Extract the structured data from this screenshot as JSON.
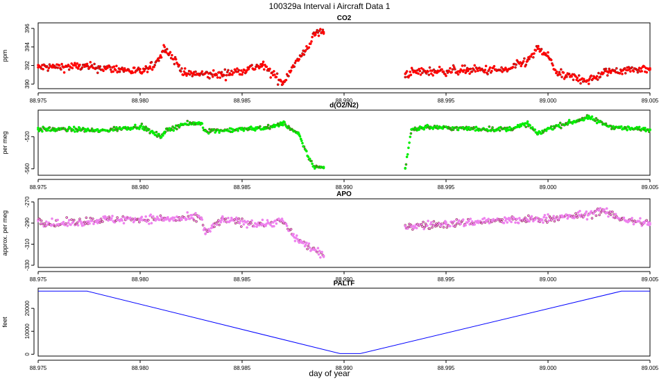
{
  "figure_title": "100329a   Interval i Aircraft Data 1",
  "xlabel": "day of year",
  "colors": {
    "co2": "#ff0000",
    "o2n2": "#00ee00",
    "apo": "#ee82ee",
    "paltf": "#0000ff",
    "outline": "#000000"
  },
  "chart_data": [
    {
      "type": "scatter",
      "title": "CO2",
      "ylabel": "ppm",
      "xlim": [
        88.975,
        89.005
      ],
      "ylim": [
        389.5,
        396.6
      ],
      "xticks": [
        "88.975",
        "88.980",
        "88.985",
        "88.990",
        "88.995",
        "89.000",
        "89.005"
      ],
      "yticks": [
        "390",
        "392",
        "394",
        "396"
      ],
      "series": [
        {
          "name": "CO2",
          "segments": [
            {
              "x": [
                88.975,
                88.977,
                88.979,
                88.98,
                88.9805,
                88.981,
                88.9812,
                88.9822,
                88.984,
                88.986,
                88.987,
                88.9875,
                88.988,
                88.9886,
                88.989
              ],
              "y": [
                391.8,
                391.9,
                391.6,
                391.3,
                391.7,
                393.0,
                394.0,
                391.1,
                391.0,
                392.0,
                390.1,
                392.0,
                393.2,
                395.5,
                395.6
              ]
            },
            {
              "x": [
                88.993,
                88.9935,
                88.996,
                88.998,
                88.999,
                88.9995,
                89.0,
                89.0005,
                89.002,
                89.003,
                89.005
              ],
              "y": [
                391.1,
                391.3,
                391.5,
                391.5,
                392.5,
                393.8,
                393.0,
                391.0,
                390.4,
                391.4,
                391.7
              ]
            }
          ]
        }
      ]
    },
    {
      "type": "scatter",
      "title": "d(O2/N2)",
      "ylabel": "per meg",
      "xlim": [
        88.975,
        89.005
      ],
      "ylim": [
        -568,
        -487
      ],
      "xticks": [
        "88.975",
        "88.980",
        "88.985",
        "88.990",
        "88.995",
        "89.000",
        "89.005"
      ],
      "yticks": [
        "-520",
        "-560"
      ],
      "series": [
        {
          "name": "d(O2/N2)",
          "segments": [
            {
              "x": [
                88.975,
                88.977,
                88.978,
                88.979,
                88.98,
                88.981,
                88.9812,
                88.982,
                88.983,
                88.9832,
                88.985,
                88.9865,
                88.987,
                88.9878,
                88.988,
                88.9885,
                88.989
              ],
              "y": [
                -511,
                -511,
                -513,
                -510,
                -507,
                -520,
                -514,
                -505,
                -503,
                -513,
                -511,
                -508,
                -503,
                -518,
                -532,
                -557,
                -559
              ]
            },
            {
              "x": [
                88.993,
                88.9933,
                88.994,
                88.996,
                88.998,
                88.999,
                88.9995,
                89.0,
                89.001,
                89.002,
                89.003,
                89.004,
                89.005
              ],
              "y": [
                -559,
                -511,
                -508,
                -510,
                -511,
                -504,
                -517,
                -510,
                -503,
                -496,
                -507,
                -510,
                -511
              ]
            }
          ]
        }
      ]
    },
    {
      "type": "scatter",
      "title": "APO",
      "ylabel": "approx. per meg",
      "xlim": [
        88.975,
        89.005
      ],
      "ylim": [
        -332,
        -267
      ],
      "xticks": [
        "88.975",
        "88.980",
        "88.985",
        "88.990",
        "88.995",
        "89.000",
        "89.005"
      ],
      "yticks": [
        "-270",
        "-290",
        "-310",
        "-330"
      ],
      "series": [
        {
          "name": "APO",
          "segments": [
            {
              "x": [
                88.975,
                88.976,
                88.978,
                88.98,
                88.982,
                88.983,
                88.9832,
                88.984,
                88.986,
                88.987,
                88.9875,
                88.988,
                88.9885,
                88.989
              ],
              "y": [
                -288,
                -291,
                -287,
                -286,
                -286,
                -285,
                -300,
                -287,
                -291,
                -288,
                -302,
                -309,
                -315,
                -322
              ]
            },
            {
              "x": [
                88.993,
                88.995,
                88.997,
                88.999,
                89.001,
                89.002,
                89.0025,
                89.004,
                89.005
              ],
              "y": [
                -293,
                -291,
                -288,
                -287,
                -284,
                -282,
                -278,
                -288,
                -290
              ]
            }
          ]
        }
      ]
    },
    {
      "type": "line",
      "title": "PALTF",
      "ylabel": "feet",
      "xlim": [
        88.975,
        89.005
      ],
      "ylim": [
        -800,
        28800
      ],
      "xticks": [
        "88.975",
        "88.980",
        "88.985",
        "88.990",
        "88.995",
        "89.000",
        "89.005"
      ],
      "yticks": [
        "0",
        "10000",
        "20000"
      ],
      "series": [
        {
          "name": "PALTF",
          "x": [
            88.975,
            88.9774,
            88.9898,
            88.9908,
            89.0036,
            89.005
          ],
          "y": [
            27500,
            27500,
            300,
            300,
            27500,
            27500
          ]
        }
      ]
    }
  ]
}
